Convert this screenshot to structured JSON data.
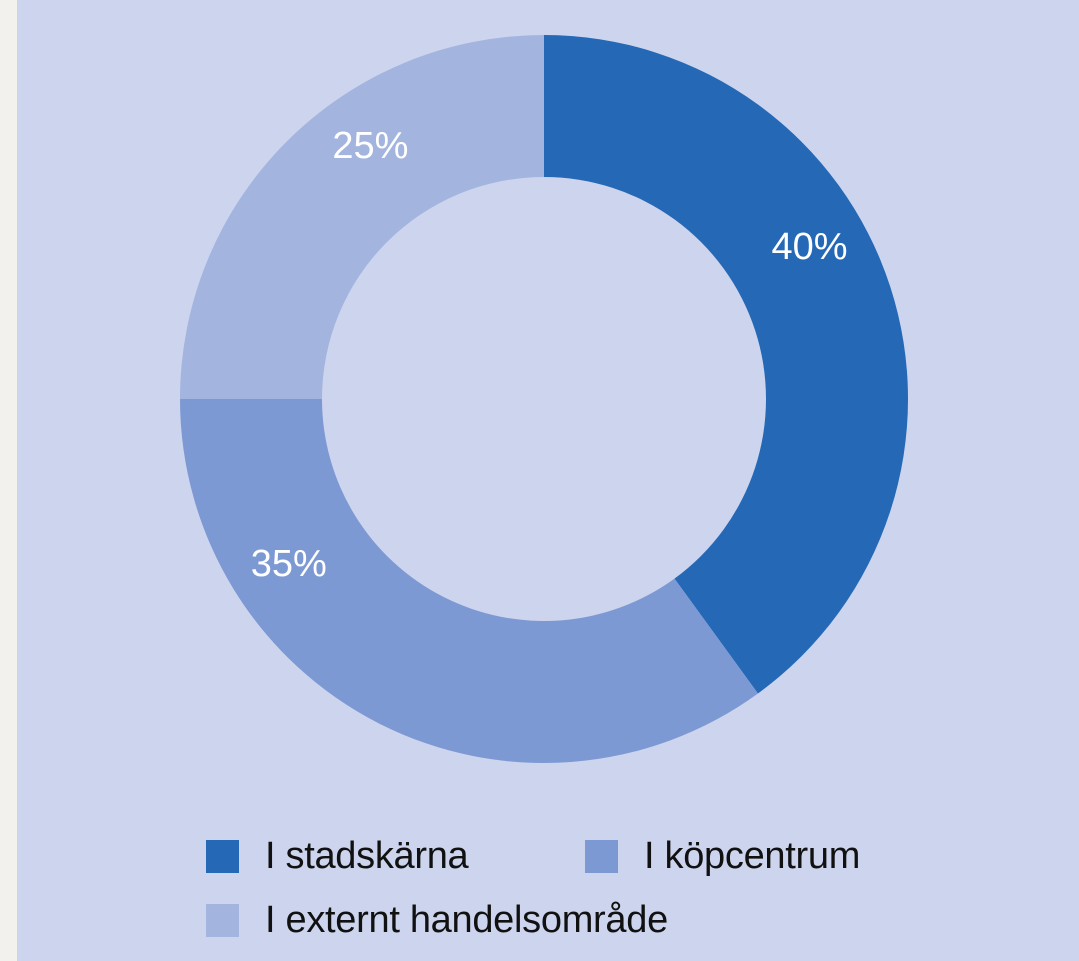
{
  "chart_data": {
    "type": "pie",
    "variant": "donut",
    "title": "",
    "slices": [
      {
        "label": "I stadskärna",
        "value": 40,
        "value_label": "40%",
        "color": "#2468b6"
      },
      {
        "label": "I köpcentrum",
        "value": 35,
        "value_label": "35%",
        "color": "#7d99d3"
      },
      {
        "label": "I externt handelsområde",
        "value": 25,
        "value_label": "25%",
        "color": "#a3b4de"
      }
    ],
    "legend_position": "bottom"
  },
  "colors": {
    "background": "#cdd4ee",
    "outer_background": "#f3f1ee",
    "label_text": "#ffffff",
    "legend_text": "#111111"
  }
}
